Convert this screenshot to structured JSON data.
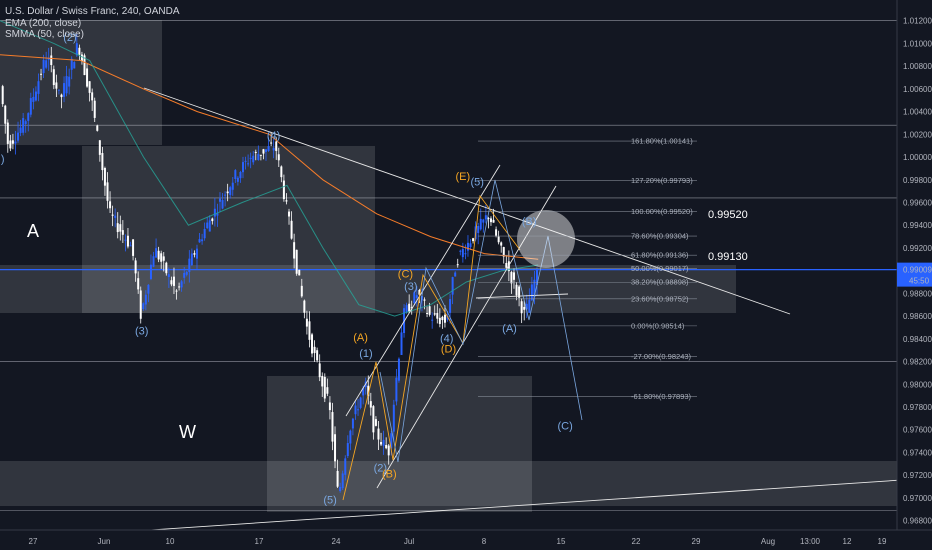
{
  "header": {
    "title": "U.S. Dollar / Swiss Franc, 240, OANDA",
    "indicator_ema": "EMA (200, close)",
    "indicator_smma": "SMMA (50, close)"
  },
  "price_tag": {
    "price": "0.99009",
    "countdown": "45:50"
  },
  "right_labels": {
    "level_a": "0.99520",
    "level_b": "0.99130"
  },
  "pattern_labels": {
    "a": "A",
    "w": "W"
  },
  "colors": {
    "background": "#131722",
    "bull": "#2962ff",
    "bear": "#ffffff",
    "ema": "#f57c2a",
    "smma": "#26a69a",
    "wave_blue": "#7aa7e0",
    "wave_orange": "#f5a623",
    "fib_text": "#aab0bc",
    "price_line": "#2962ff"
  },
  "chart_data": {
    "type": "candlestick",
    "symbol": "USDCHF",
    "timeframe": "240",
    "y_ticks": [
      "1.01200",
      "1.01000",
      "1.00800",
      "1.00600",
      "1.00400",
      "1.00200",
      "1.00000",
      "0.99800",
      "0.99600",
      "0.99400",
      "0.99200",
      "0.99000",
      "0.98800",
      "0.98600",
      "0.98400",
      "0.98200",
      "0.98000",
      "0.97800",
      "0.97600",
      "0.97400",
      "0.97200",
      "0.97000",
      "0.96800"
    ],
    "ylim": [
      0.9673,
      1.0128
    ],
    "x_ticks": [
      "27",
      "Jun",
      "10",
      "17",
      "24",
      "Jul",
      "8",
      "15",
      "22",
      "29",
      "Aug",
      "13:00",
      "12",
      "19"
    ],
    "fib_levels": [
      {
        "label": "161.80%(1.00141)",
        "value": 1.00141
      },
      {
        "label": "127.20%(0.99793)",
        "value": 0.99793
      },
      {
        "label": "100.00%(0.99520)",
        "value": 0.9952
      },
      {
        "label": "78.60%(0.99304)",
        "value": 0.99304
      },
      {
        "label": "61.80%(0.99136)",
        "value": 0.99136
      },
      {
        "label": "50.00%(0.99017)",
        "value": 0.99017
      },
      {
        "label": "38.20%(0.98898)",
        "value": 0.98898
      },
      {
        "label": "23.60%(0.98752)",
        "value": 0.98752
      },
      {
        "label": "0.00%(0.98514)",
        "value": 0.98514
      },
      {
        "label": "-27.00%(0.98243)",
        "value": 0.98243
      },
      {
        "label": "-61.80%(0.97893)",
        "value": 0.97893
      }
    ],
    "horizontal_levels": [
      1.012,
      1.0028,
      0.9964,
      0.99009,
      0.982,
      0.9689
    ],
    "wave_labels_blue": [
      {
        "text": "(2)",
        "t": 0.078,
        "y": 1.0102
      },
      {
        "text": "(4)",
        "t": 0.305,
        "y": 1.0016
      },
      {
        "text": "(3)",
        "t": 0.158,
        "y": 0.9844
      },
      {
        "text": "(5)",
        "t": 0.368,
        "y": 0.9695
      },
      {
        "text": "(1)",
        "t": 0.408,
        "y": 0.9824
      },
      {
        "text": "(2)",
        "t": 0.424,
        "y": 0.9723
      },
      {
        "text": "(3)",
        "t": 0.458,
        "y": 0.9883
      },
      {
        "text": "(4)",
        "t": 0.498,
        "y": 0.9837
      },
      {
        "text": "(5)",
        "t": 0.532,
        "y": 0.9975
      },
      {
        "text": "(A)",
        "t": 0.568,
        "y": 0.9846
      },
      {
        "text": "(B)",
        "t": 0.59,
        "y": 0.994
      },
      {
        "text": "(C)",
        "t": 0.63,
        "y": 0.976
      },
      {
        "text": ")",
        "t": 0.003,
        "y": 0.9995
      }
    ],
    "wave_labels_orange": [
      {
        "text": "(A)",
        "t": 0.402,
        "y": 0.9838
      },
      {
        "text": "(B)",
        "t": 0.434,
        "y": 0.9718
      },
      {
        "text": "(C)",
        "t": 0.452,
        "y": 0.9894
      },
      {
        "text": "(D)",
        "t": 0.5,
        "y": 0.9828
      },
      {
        "text": "(E)",
        "t": 0.516,
        "y": 0.998
      }
    ]
  }
}
